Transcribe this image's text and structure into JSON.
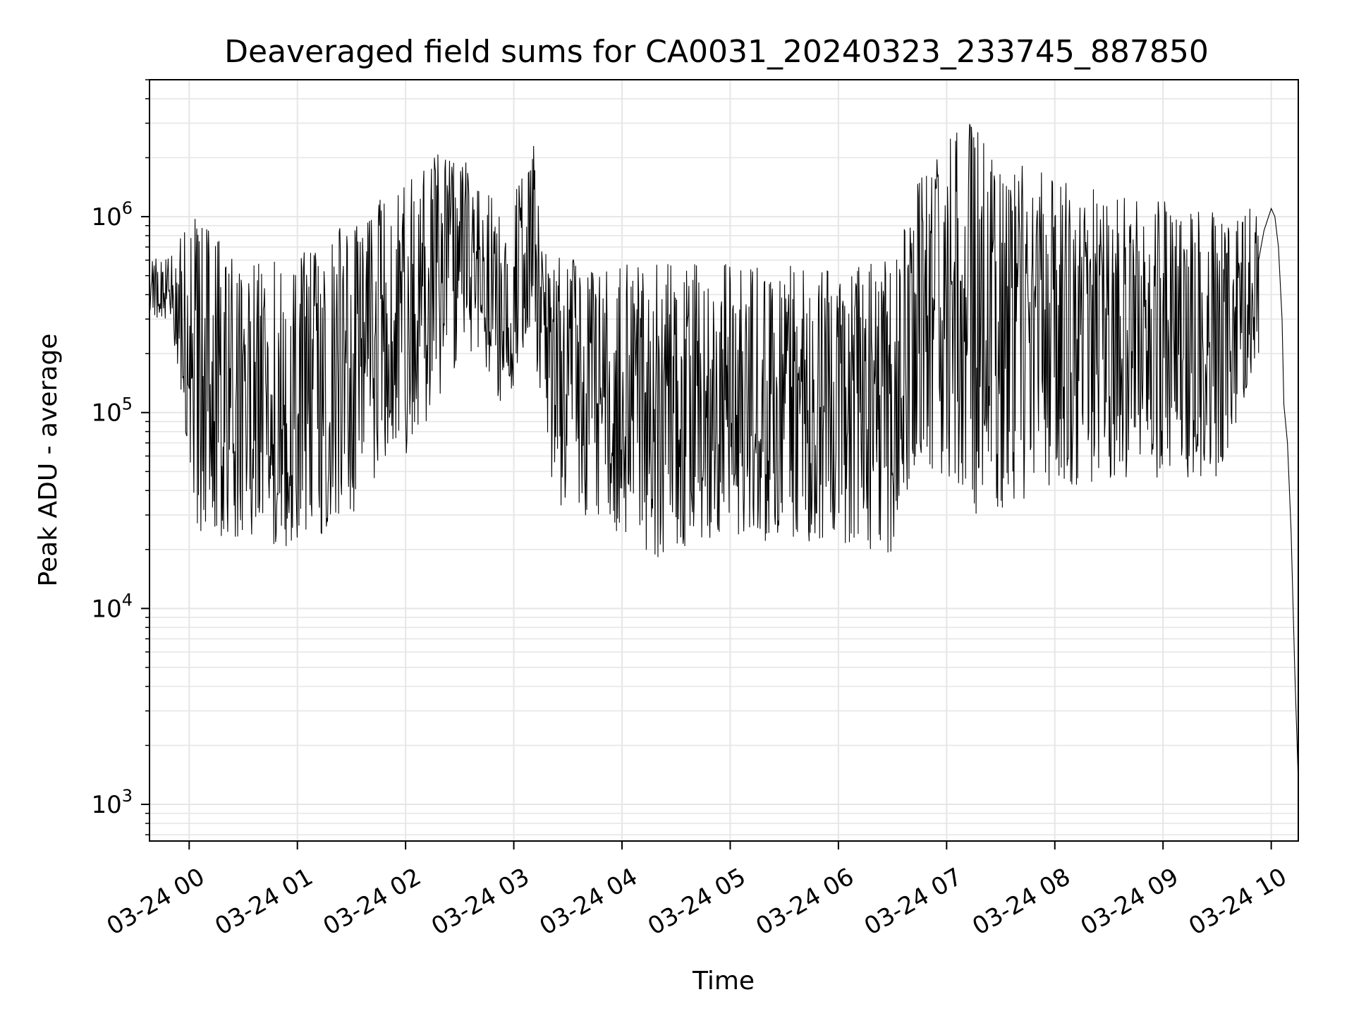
{
  "chart_data": {
    "type": "line",
    "title": "Deaveraged field sums for CA0031_20240323_233745_887850",
    "xlabel": "Time",
    "ylabel": "Peak ADU - average",
    "yscale": "log",
    "grid": true,
    "line_color": "#000000",
    "grid_color": "#e6e6e6",
    "xlim": [
      "2024-03-23 23:38",
      "2024-03-24 10:15"
    ],
    "ylim": [
      650,
      5000000
    ],
    "x_ticks": [
      {
        "value": "2024-03-24 00:00",
        "label": "03-24 00"
      },
      {
        "value": "2024-03-24 01:00",
        "label": "03-24 01"
      },
      {
        "value": "2024-03-24 02:00",
        "label": "03-24 02"
      },
      {
        "value": "2024-03-24 03:00",
        "label": "03-24 03"
      },
      {
        "value": "2024-03-24 04:00",
        "label": "03-24 04"
      },
      {
        "value": "2024-03-24 05:00",
        "label": "03-24 05"
      },
      {
        "value": "2024-03-24 06:00",
        "label": "03-24 06"
      },
      {
        "value": "2024-03-24 07:00",
        "label": "03-24 07"
      },
      {
        "value": "2024-03-24 08:00",
        "label": "03-24 08"
      },
      {
        "value": "2024-03-24 09:00",
        "label": "03-24 09"
      },
      {
        "value": "2024-03-24 10:00",
        "label": "03-24 10"
      }
    ],
    "y_ticks": [
      {
        "value": 1000,
        "base": "10",
        "exp": "3"
      },
      {
        "value": 10000,
        "base": "10",
        "exp": "4"
      },
      {
        "value": 100000,
        "base": "10",
        "exp": "5"
      },
      {
        "value": 1000000,
        "base": "10",
        "exp": "6"
      }
    ],
    "series": [
      {
        "style": "noisy envelope trace",
        "points": [
          {
            "x": "2024-03-23 23:38",
            "low": 300000,
            "high": 600000
          },
          {
            "x": "2024-03-23 23:50",
            "low": 300000,
            "high": 650000
          },
          {
            "x": "2024-03-24 00:05",
            "low": 25000,
            "high": 1100000
          },
          {
            "x": "2024-03-24 00:30",
            "low": 22000,
            "high": 550000
          },
          {
            "x": "2024-03-24 01:00",
            "low": 20000,
            "high": 650000
          },
          {
            "x": "2024-03-24 01:30",
            "low": 30000,
            "high": 1000000
          },
          {
            "x": "2024-03-24 01:55",
            "low": 50000,
            "high": 1400000
          },
          {
            "x": "2024-03-24 02:20",
            "low": 120000,
            "high": 2200000
          },
          {
            "x": "2024-03-24 02:40",
            "low": 200000,
            "high": 2000000
          },
          {
            "x": "2024-03-24 02:55",
            "low": 95000,
            "high": 900000
          },
          {
            "x": "2024-03-24 03:10",
            "low": 300000,
            "high": 2800000
          },
          {
            "x": "2024-03-24 03:20",
            "low": 35000,
            "high": 650000
          },
          {
            "x": "2024-03-24 03:45",
            "low": 28000,
            "high": 600000
          },
          {
            "x": "2024-03-24 04:20",
            "low": 18000,
            "high": 600000
          },
          {
            "x": "2024-03-24 04:50",
            "low": 22000,
            "high": 580000
          },
          {
            "x": "2024-03-24 05:30",
            "low": 22000,
            "high": 560000
          },
          {
            "x": "2024-03-24 06:00",
            "low": 21000,
            "high": 580000
          },
          {
            "x": "2024-03-24 06:30",
            "low": 19000,
            "high": 600000
          },
          {
            "x": "2024-03-24 06:45",
            "low": 60000,
            "high": 1600000
          },
          {
            "x": "2024-03-24 07:10",
            "low": 30000,
            "high": 3300000
          },
          {
            "x": "2024-03-24 07:30",
            "low": 30000,
            "high": 1900000
          },
          {
            "x": "2024-03-24 07:50",
            "low": 40000,
            "high": 1800000
          },
          {
            "x": "2024-03-24 08:30",
            "low": 45000,
            "high": 1300000
          },
          {
            "x": "2024-03-24 09:00",
            "low": 45000,
            "high": 1200000
          },
          {
            "x": "2024-03-24 09:30",
            "low": 45000,
            "high": 1100000
          },
          {
            "x": "2024-03-24 09:53",
            "low": 200000,
            "high": 1100000
          }
        ],
        "smooth_tail": [
          {
            "x": "2024-03-24 09:53",
            "y": 600000
          },
          {
            "x": "2024-03-24 09:56",
            "y": 850000
          },
          {
            "x": "2024-03-24 10:00",
            "y": 1100000
          },
          {
            "x": "2024-03-24 10:02",
            "y": 1000000
          },
          {
            "x": "2024-03-24 10:04",
            "y": 700000
          },
          {
            "x": "2024-03-24 10:06",
            "y": 300000
          },
          {
            "x": "2024-03-24 10:07",
            "y": 110000
          },
          {
            "x": "2024-03-24 10:09",
            "y": 70000
          },
          {
            "x": "2024-03-24 10:11",
            "y": 25000
          },
          {
            "x": "2024-03-24 10:13",
            "y": 5000
          },
          {
            "x": "2024-03-24 10:15",
            "y": 1300
          }
        ]
      }
    ]
  }
}
